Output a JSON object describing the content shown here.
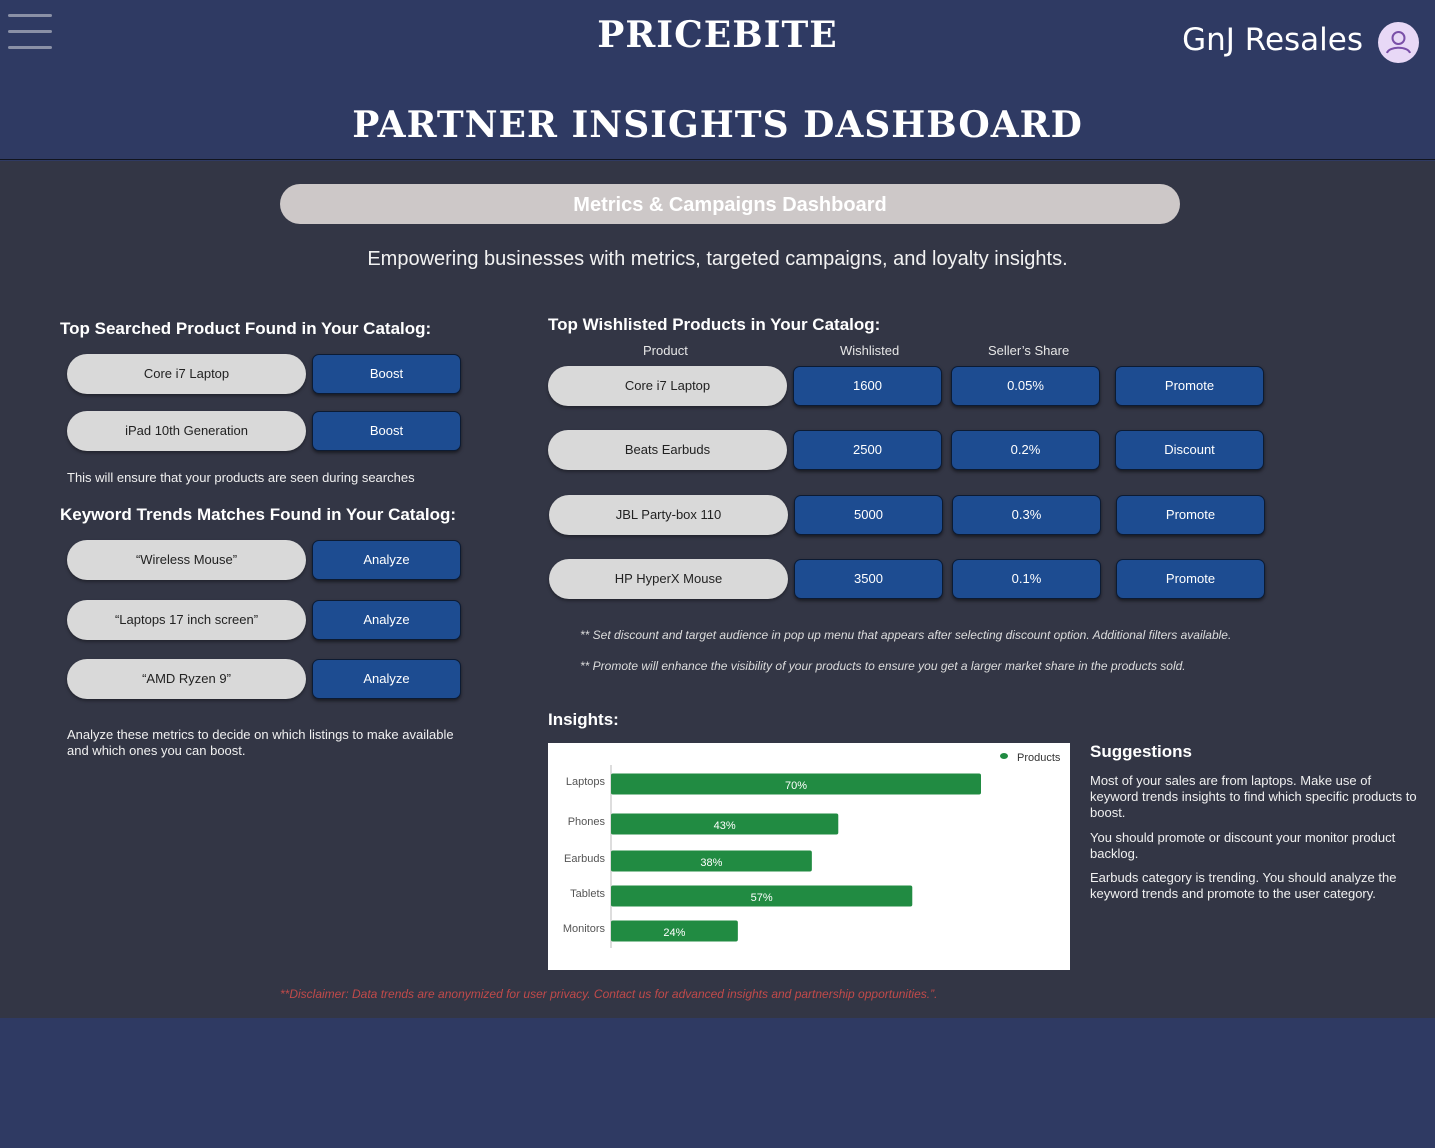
{
  "header": {
    "brand": "PRICEBITE",
    "user_name": "GnJ Resales",
    "menu_icon": "hamburger-menu-icon",
    "avatar_icon": "user-avatar-icon"
  },
  "page_title": "PARTNER INSIGHTS DASHBOARD",
  "banner": "Metrics & Campaigns Dashboard",
  "tagline": "Empowering businesses with metrics, targeted campaigns, and loyalty insights.",
  "top_searched": {
    "heading": "Top Searched Product Found in Your Catalog:",
    "items": [
      {
        "product": "Core i7 Laptop",
        "action": "Boost"
      },
      {
        "product": "iPad 10th Generation",
        "action": "Boost"
      }
    ],
    "note": "This will ensure that your products are seen during searches"
  },
  "keyword_trends": {
    "heading": "Keyword Trends Matches Found in Your Catalog:",
    "items": [
      {
        "keyword": "“Wireless Mouse”",
        "action": "Analyze"
      },
      {
        "keyword": "“Laptops 17 inch screen”",
        "action": "Analyze"
      },
      {
        "keyword": "“AMD Ryzen 9”",
        "action": "Analyze"
      }
    ],
    "note": "Analyze these metrics to decide on which listings to make available and which ones you can boost."
  },
  "wishlisted": {
    "heading": "Top Wishlisted Products in Your Catalog:",
    "columns": [
      "Product",
      "Wishlisted",
      "Seller’s Share"
    ],
    "rows": [
      {
        "product": "Core i7 Laptop",
        "wishlisted": "1600",
        "share": "0.05%",
        "action": "Promote"
      },
      {
        "product": "Beats Earbuds",
        "wishlisted": "2500",
        "share": "0.2%",
        "action": "Discount"
      },
      {
        "product": "JBL Party-box 110",
        "wishlisted": "5000",
        "share": "0.3%",
        "action": "Promote"
      },
      {
        "product": "HP HyperX Mouse",
        "wishlisted": "3500",
        "share": "0.1%",
        "action": "Promote"
      }
    ],
    "notes": [
      "** Set discount and target audience in pop up menu that appears after selecting discount option. Additional filters available.",
      "** Promote will enhance the visibility of your products to ensure you get a larger market share in the products sold."
    ]
  },
  "insights": {
    "heading": "Insights:"
  },
  "chart_data": {
    "type": "bar",
    "orientation": "horizontal",
    "categories": [
      "Laptops",
      "Phones",
      "Earbuds",
      "Tablets",
      "Monitors"
    ],
    "series": [
      {
        "name": "Products",
        "values": [
          70,
          43,
          38,
          57,
          24
        ]
      }
    ],
    "data_labels": [
      "70%",
      "43%",
      "38%",
      "57%",
      "24%"
    ],
    "legend": "top-right",
    "color": "#218b42",
    "grid": false
  },
  "suggestions": {
    "title": "Suggestions",
    "items": [
      "Most of your sales are from laptops. Make use of keyword trends insights to find which specific products to boost.",
      "You should promote or discount your monitor product backlog.",
      "Earbuds category is trending. You should analyze the keyword trends and promote to the user category."
    ]
  },
  "disclaimer": "**Disclaimer: Data trends are anonymized for user privacy. Contact us for advanced insights and partnership opportunities.”."
}
